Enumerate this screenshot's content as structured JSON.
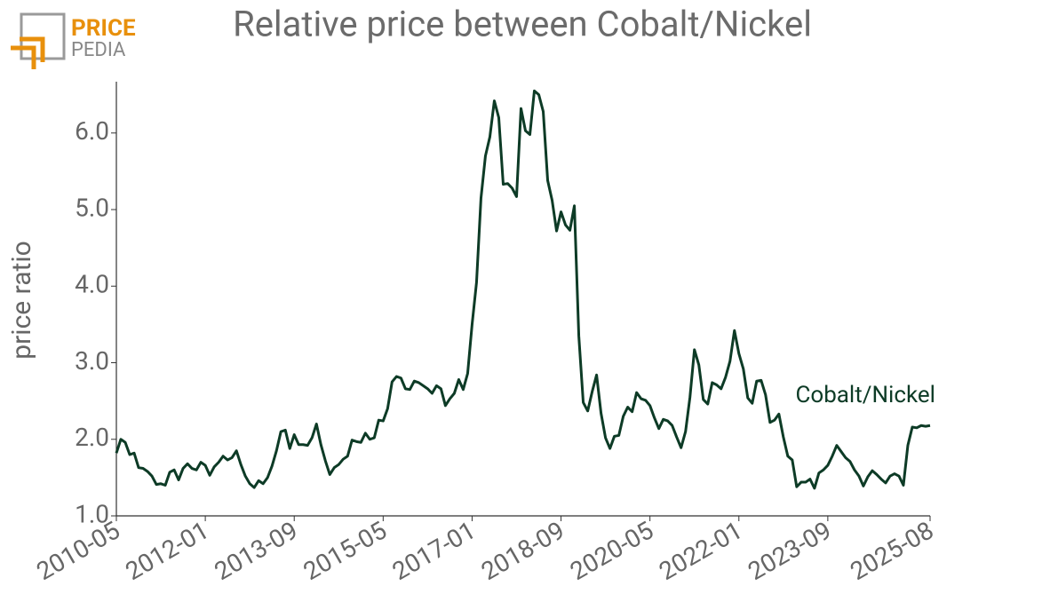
{
  "logo": {
    "line1": "PRICE",
    "line2": "PEDIA"
  },
  "chart_data": {
    "type": "line",
    "title": "Relative price between Cobalt/Nickel",
    "y_label": "price ratio",
    "xlim": [
      "2010-05",
      "2025-08"
    ],
    "xticks": [
      "2010-05",
      "2012-01",
      "2013-09",
      "2015-05",
      "2017-01",
      "2018-09",
      "2020-05",
      "2022-01",
      "2023-09",
      "2025-08"
    ],
    "ylim": [
      1,
      6.67
    ],
    "yticks": [
      {
        "value": 1,
        "label": "1.0"
      },
      {
        "value": 2,
        "label": "2.0"
      },
      {
        "value": 3,
        "label": "3.0"
      },
      {
        "value": 4,
        "label": "4.0"
      },
      {
        "value": 5,
        "label": "5.0"
      },
      {
        "value": 6,
        "label": "6.0"
      }
    ],
    "x": [
      "2010-05",
      "2010-06",
      "2010-07",
      "2010-08",
      "2010-09",
      "2010-10",
      "2010-11",
      "2010-12",
      "2011-01",
      "2011-02",
      "2011-03",
      "2011-04",
      "2011-05",
      "2011-06",
      "2011-07",
      "2011-08",
      "2011-09",
      "2011-10",
      "2011-11",
      "2011-12",
      "2012-01",
      "2012-02",
      "2012-03",
      "2012-04",
      "2012-05",
      "2012-06",
      "2012-07",
      "2012-08",
      "2012-09",
      "2012-10",
      "2012-11",
      "2012-12",
      "2013-01",
      "2013-02",
      "2013-03",
      "2013-04",
      "2013-05",
      "2013-06",
      "2013-07",
      "2013-08",
      "2013-09",
      "2013-10",
      "2013-11",
      "2013-12",
      "2014-01",
      "2014-02",
      "2014-03",
      "2014-04",
      "2014-05",
      "2014-06",
      "2014-07",
      "2014-08",
      "2014-09",
      "2014-10",
      "2014-11",
      "2014-12",
      "2015-01",
      "2015-02",
      "2015-03",
      "2015-04",
      "2015-05",
      "2015-06",
      "2015-07",
      "2015-08",
      "2015-09",
      "2015-10",
      "2015-11",
      "2015-12",
      "2016-01",
      "2016-02",
      "2016-03",
      "2016-04",
      "2016-05",
      "2016-06",
      "2016-07",
      "2016-08",
      "2016-09",
      "2016-10",
      "2016-11",
      "2016-12",
      "2017-01",
      "2017-02",
      "2017-03",
      "2017-04",
      "2017-05",
      "2017-06",
      "2017-07",
      "2017-08",
      "2017-09",
      "2017-10",
      "2017-11",
      "2017-12",
      "2018-01",
      "2018-02",
      "2018-03",
      "2018-04",
      "2018-05",
      "2018-06",
      "2018-07",
      "2018-08",
      "2018-09",
      "2018-10",
      "2018-11",
      "2018-12",
      "2019-01",
      "2019-02",
      "2019-03",
      "2019-04",
      "2019-05",
      "2019-06",
      "2019-07",
      "2019-08",
      "2019-09",
      "2019-10",
      "2019-11",
      "2019-12",
      "2020-01",
      "2020-02",
      "2020-03",
      "2020-04",
      "2020-05",
      "2020-06",
      "2020-07",
      "2020-08",
      "2020-09",
      "2020-10",
      "2020-11",
      "2020-12",
      "2021-01",
      "2021-02",
      "2021-03",
      "2021-04",
      "2021-05",
      "2021-06",
      "2021-07",
      "2021-08",
      "2021-09",
      "2021-10",
      "2021-11",
      "2021-12",
      "2022-01",
      "2022-02",
      "2022-03",
      "2022-04",
      "2022-05",
      "2022-06",
      "2022-07",
      "2022-08",
      "2022-09",
      "2022-10",
      "2022-11",
      "2022-12",
      "2023-01",
      "2023-02",
      "2023-03",
      "2023-04",
      "2023-05",
      "2023-06",
      "2023-07",
      "2023-08",
      "2023-09",
      "2023-10",
      "2023-11",
      "2023-12",
      "2024-01",
      "2024-02",
      "2024-03",
      "2024-04",
      "2024-05",
      "2024-06",
      "2024-07",
      "2024-08",
      "2024-09",
      "2024-10",
      "2024-11",
      "2024-12",
      "2025-01",
      "2025-02",
      "2025-03",
      "2025-04",
      "2025-05",
      "2025-06",
      "2025-07",
      "2025-08"
    ],
    "series": [
      {
        "name": "Cobalt/Nickel",
        "color": "#0d3b26",
        "values": [
          1.82,
          2.0,
          1.96,
          1.8,
          1.82,
          1.63,
          1.62,
          1.58,
          1.52,
          1.41,
          1.42,
          1.4,
          1.57,
          1.6,
          1.47,
          1.62,
          1.68,
          1.62,
          1.6,
          1.7,
          1.66,
          1.53,
          1.64,
          1.7,
          1.78,
          1.73,
          1.76,
          1.85,
          1.67,
          1.52,
          1.42,
          1.37,
          1.46,
          1.42,
          1.5,
          1.65,
          1.85,
          2.1,
          2.12,
          1.88,
          2.06,
          1.93,
          1.93,
          1.92,
          2.02,
          2.2,
          1.93,
          1.72,
          1.54,
          1.63,
          1.67,
          1.74,
          1.78,
          1.99,
          1.97,
          1.96,
          2.08,
          2.0,
          2.02,
          2.25,
          2.24,
          2.4,
          2.75,
          2.82,
          2.8,
          2.66,
          2.65,
          2.76,
          2.74,
          2.7,
          2.66,
          2.6,
          2.7,
          2.66,
          2.44,
          2.53,
          2.6,
          2.78,
          2.65,
          2.86,
          3.5,
          4.05,
          5.15,
          5.7,
          5.95,
          6.42,
          6.2,
          5.33,
          5.34,
          5.28,
          5.17,
          6.32,
          6.03,
          5.98,
          6.55,
          6.5,
          6.28,
          5.38,
          5.12,
          4.72,
          4.97,
          4.8,
          4.73,
          5.05,
          3.35,
          2.48,
          2.37,
          2.62,
          2.84,
          2.34,
          2.02,
          1.88,
          2.04,
          2.05,
          2.3,
          2.42,
          2.36,
          2.61,
          2.53,
          2.51,
          2.44,
          2.28,
          2.14,
          2.26,
          2.24,
          2.18,
          2.03,
          1.89,
          2.1,
          2.55,
          3.17,
          2.97,
          2.52,
          2.46,
          2.74,
          2.71,
          2.66,
          2.81,
          3.02,
          3.42,
          3.12,
          2.92,
          2.54,
          2.47,
          2.76,
          2.77,
          2.58,
          2.22,
          2.25,
          2.33,
          2.03,
          1.78,
          1.73,
          1.38,
          1.44,
          1.44,
          1.48,
          1.36,
          1.56,
          1.6,
          1.66,
          1.78,
          1.92,
          1.84,
          1.76,
          1.71,
          1.6,
          1.52,
          1.39,
          1.51,
          1.59,
          1.54,
          1.48,
          1.43,
          1.52,
          1.55,
          1.52,
          1.4,
          1.92,
          2.16,
          2.15,
          2.18,
          2.17,
          2.18
        ]
      }
    ]
  }
}
